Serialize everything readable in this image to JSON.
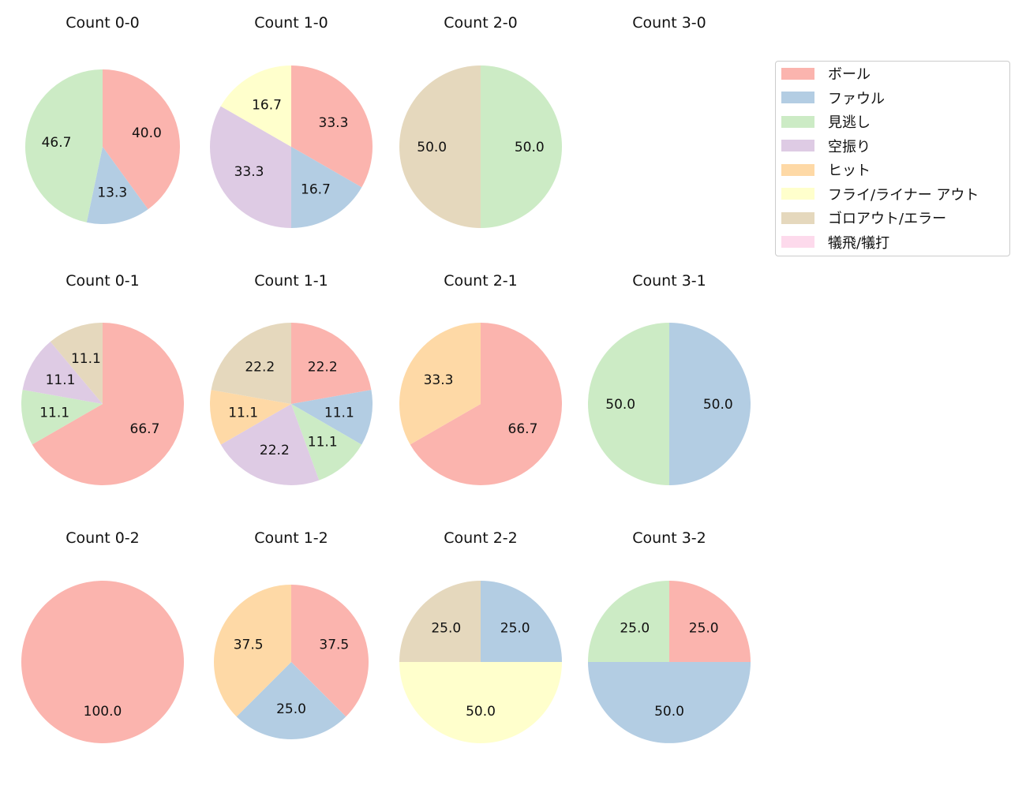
{
  "chart_data": [
    {
      "type": "pie",
      "title": "Count 0-0",
      "categories": [
        "ボール",
        "ファウル",
        "見逃し"
      ],
      "values": [
        40.0,
        13.3,
        46.7
      ]
    },
    {
      "type": "pie",
      "title": "Count 1-0",
      "categories": [
        "ボール",
        "ファウル",
        "空振り",
        "フライ/ライナー アウト"
      ],
      "values": [
        33.3,
        16.7,
        33.3,
        16.7
      ]
    },
    {
      "type": "pie",
      "title": "Count 2-0",
      "categories": [
        "見逃し",
        "ゴロアウト/エラー"
      ],
      "values": [
        50.0,
        50.0
      ]
    },
    {
      "type": "pie",
      "title": "Count 3-0",
      "categories": [],
      "values": []
    },
    {
      "type": "pie",
      "title": "Count 0-1",
      "categories": [
        "ボール",
        "見逃し",
        "空振り",
        "ゴロアウト/エラー"
      ],
      "values": [
        66.7,
        11.1,
        11.1,
        11.1
      ]
    },
    {
      "type": "pie",
      "title": "Count 1-1",
      "categories": [
        "ボール",
        "ファウル",
        "見逃し",
        "空振り",
        "ヒット",
        "ゴロアウト/エラー"
      ],
      "values": [
        22.2,
        11.1,
        11.1,
        22.2,
        11.1,
        22.2
      ]
    },
    {
      "type": "pie",
      "title": "Count 2-1",
      "categories": [
        "ボール",
        "ヒット"
      ],
      "values": [
        66.7,
        33.3
      ]
    },
    {
      "type": "pie",
      "title": "Count 3-1",
      "categories": [
        "ファウル",
        "見逃し"
      ],
      "values": [
        50.0,
        50.0
      ]
    },
    {
      "type": "pie",
      "title": "Count 0-2",
      "categories": [
        "ボール"
      ],
      "values": [
        100.0
      ]
    },
    {
      "type": "pie",
      "title": "Count 1-2",
      "categories": [
        "ボール",
        "ファウル",
        "ヒット"
      ],
      "values": [
        37.5,
        25.0,
        37.5
      ]
    },
    {
      "type": "pie",
      "title": "Count 2-2",
      "categories": [
        "ファウル",
        "フライ/ライナー アウト",
        "ゴロアウト/エラー"
      ],
      "values": [
        25.0,
        50.0,
        25.0
      ]
    },
    {
      "type": "pie",
      "title": "Count 3-2",
      "categories": [
        "ボール",
        "ファウル",
        "見逃し"
      ],
      "values": [
        25.0,
        50.0,
        25.0
      ]
    }
  ],
  "legend": {
    "placement": "right",
    "items": [
      {
        "label": "ボール",
        "color": "#fbb4ae"
      },
      {
        "label": "ファウル",
        "color": "#b3cde3"
      },
      {
        "label": "見逃し",
        "color": "#ccebc5"
      },
      {
        "label": "空振り",
        "color": "#decbe4"
      },
      {
        "label": "ヒット",
        "color": "#fed9a6"
      },
      {
        "label": "フライ/ライナー アウト",
        "color": "#ffffcc"
      },
      {
        "label": "ゴロアウト/エラー",
        "color": "#e5d8bd"
      },
      {
        "label": "犠飛/犠打",
        "color": "#fddaec"
      }
    ]
  }
}
